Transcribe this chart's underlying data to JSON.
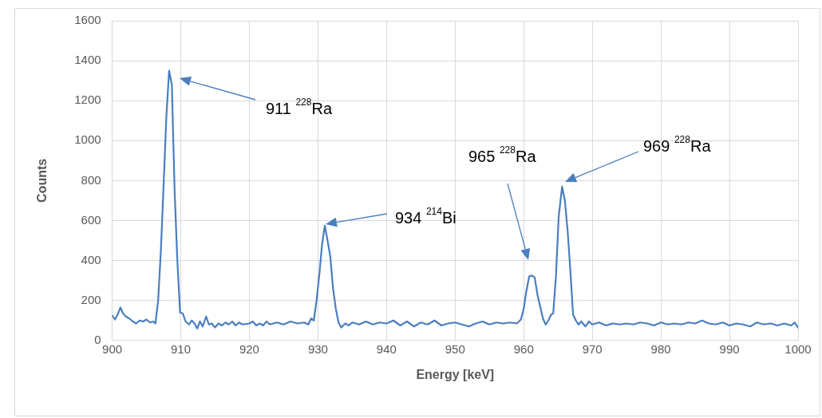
{
  "chart_data": {
    "type": "line",
    "xlabel": "Energy [keV]",
    "ylabel": "Counts",
    "xlim": [
      900,
      1000
    ],
    "xticks": [
      900,
      910,
      920,
      930,
      940,
      950,
      960,
      970,
      980,
      990,
      1000
    ],
    "ylim": [
      0,
      1600
    ],
    "yticks": [
      0,
      200,
      400,
      600,
      800,
      1000,
      1200,
      1400,
      1600
    ],
    "grid": true,
    "legend": false,
    "marker": "none",
    "line_style": "solid",
    "series": [
      {
        "color": "#4a7ebf",
        "x": [
          900,
          900.4,
          900.8,
          901.2,
          901.6,
          902,
          902.5,
          903,
          903.5,
          904,
          904.5,
          905,
          905.5,
          906,
          906.3,
          906.7,
          907.1,
          907.5,
          907.9,
          908.3,
          908.7,
          909.1,
          909.5,
          909.9,
          910.3,
          910.7,
          911.2,
          911.6,
          912,
          912.4,
          912.8,
          913.2,
          913.7,
          914.1,
          914.5,
          915,
          915.5,
          916,
          916.5,
          917,
          917.5,
          918,
          918.5,
          919,
          920,
          920.5,
          921,
          921.5,
          922,
          922.5,
          923,
          924,
          925,
          926,
          927,
          928,
          928.6,
          929,
          929.4,
          929.8,
          930.2,
          930.6,
          931,
          931.4,
          931.8,
          932.2,
          932.6,
          933,
          933.4,
          934,
          934.5,
          935,
          936,
          937,
          938,
          939,
          940,
          941,
          942,
          943,
          944,
          945,
          946,
          947,
          948,
          949,
          950,
          951,
          952,
          953,
          954,
          955,
          956,
          957,
          958,
          959,
          959.6,
          960,
          960.4,
          960.8,
          961.2,
          961.6,
          962,
          962.4,
          962.8,
          963.2,
          963.6,
          964,
          964.3,
          964.7,
          965.1,
          965.6,
          966,
          966.4,
          966.8,
          967.2,
          967.6,
          968,
          968.4,
          969,
          969.5,
          970,
          971,
          972,
          973,
          974,
          975,
          976,
          977,
          978,
          979,
          980,
          981,
          982,
          983,
          984,
          985,
          986,
          987,
          988,
          989,
          990,
          991,
          992,
          993,
          994,
          995,
          996,
          997,
          998,
          999,
          999.5,
          1000
        ],
        "values": [
          125,
          105,
          130,
          165,
          135,
          120,
          110,
          95,
          85,
          100,
          95,
          105,
          90,
          95,
          85,
          200,
          450,
          780,
          1120,
          1350,
          1280,
          750,
          400,
          140,
          135,
          95,
          80,
          100,
          85,
          60,
          95,
          70,
          120,
          80,
          85,
          65,
          85,
          75,
          90,
          80,
          95,
          75,
          90,
          80,
          85,
          95,
          75,
          85,
          75,
          95,
          80,
          90,
          80,
          95,
          85,
          90,
          80,
          110,
          100,
          200,
          330,
          480,
          575,
          500,
          420,
          260,
          160,
          90,
          65,
          85,
          75,
          90,
          80,
          95,
          80,
          90,
          85,
          100,
          75,
          95,
          70,
          90,
          80,
          100,
          75,
          85,
          90,
          80,
          70,
          85,
          95,
          80,
          90,
          85,
          90,
          85,
          105,
          160,
          250,
          320,
          325,
          315,
          230,
          170,
          110,
          80,
          100,
          130,
          135,
          320,
          620,
          770,
          700,
          550,
          350,
          130,
          100,
          80,
          95,
          70,
          95,
          80,
          90,
          75,
          85,
          80,
          85,
          80,
          90,
          85,
          75,
          90,
          80,
          85,
          80,
          90,
          85,
          100,
          85,
          80,
          90,
          75,
          85,
          80,
          70,
          90,
          80,
          85,
          75,
          85,
          75,
          90,
          65
        ]
      }
    ],
    "annotations": [
      "911 $^{228}$Ra",
      "934 $^{214}$Bi",
      "965 $^{228}$Ra",
      "969 $^{228}$Ra"
    ]
  }
}
